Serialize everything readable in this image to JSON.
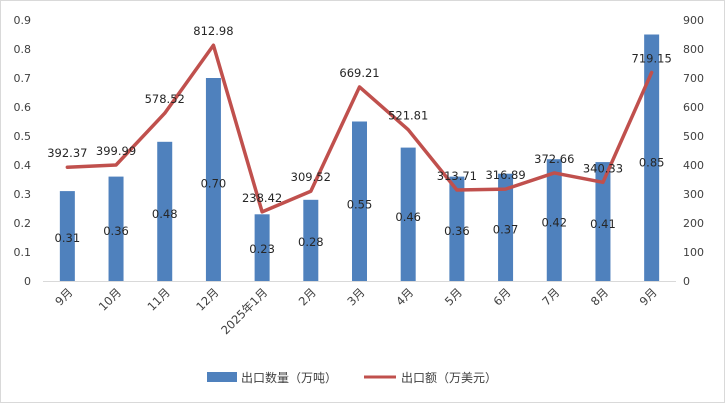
{
  "chart_data": {
    "type": "bar+line",
    "categories": [
      "9月",
      "10月",
      "11月",
      "12月",
      "2025年1月",
      "2月",
      "3月",
      "4月",
      "5月",
      "6月",
      "7月",
      "8月",
      "9月"
    ],
    "series": [
      {
        "name": "出口数量（万吨）",
        "type": "bar",
        "axis": "left",
        "color": "#4f81bd",
        "values": [
          0.31,
          0.36,
          0.48,
          0.7,
          0.23,
          0.28,
          0.55,
          0.46,
          0.36,
          0.37,
          0.42,
          0.41,
          0.85
        ],
        "labels": [
          "0.31",
          "0.36",
          "0.48",
          "0.70",
          "0.23",
          "0.28",
          "0.55",
          "0.46",
          "0.36",
          "0.37",
          "0.42",
          "0.41",
          "0.85"
        ]
      },
      {
        "name": "出口额（万美元）",
        "type": "line",
        "axis": "right",
        "color": "#c0504d",
        "values": [
          392.37,
          399.99,
          578.52,
          812.98,
          238.42,
          309.52,
          669.21,
          521.81,
          313.71,
          316.89,
          372.66,
          340.33,
          719.15
        ],
        "labels": [
          "392.37",
          "399.99",
          "578.52",
          "812.98",
          "238.42",
          "309.52",
          "669.21",
          "521.81",
          "313.71",
          "316.89",
          "372.66",
          "340.33",
          "719.15"
        ]
      }
    ],
    "y_left": {
      "min": 0,
      "max": 0.9,
      "ticks": [
        "0",
        "0.1",
        "0.2",
        "0.3",
        "0.4",
        "0.5",
        "0.6",
        "0.7",
        "0.8",
        "0.9"
      ]
    },
    "y_right": {
      "min": 0,
      "max": 900,
      "ticks": [
        "0",
        "100",
        "200",
        "300",
        "400",
        "500",
        "600",
        "700",
        "800",
        "900"
      ]
    },
    "grid": false,
    "legend_position": "bottom"
  }
}
